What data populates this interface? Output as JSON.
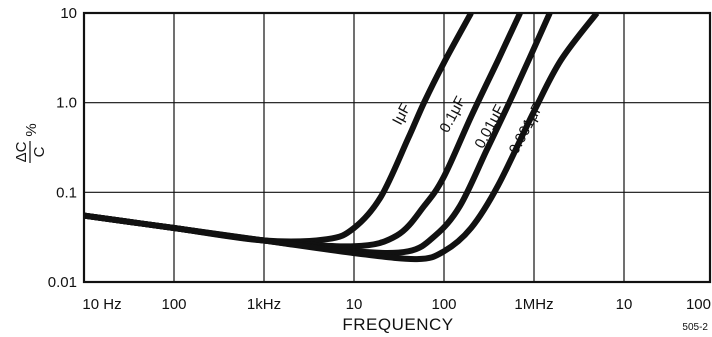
{
  "chart_data": {
    "type": "line",
    "title": "",
    "xlabel": "FREQUENCY",
    "ylabel_numerator": "ΔC",
    "ylabel_denominator": "C",
    "ylabel_unit": "%",
    "x_scale": "log",
    "y_scale": "log",
    "xlim": [
      10,
      10000000
    ],
    "ylim": [
      0.01,
      10
    ],
    "grid": true,
    "x_tick_values": [
      10,
      100,
      1000,
      10000,
      100000,
      1000000,
      10000000,
      100000000
    ],
    "x_tick_labels": [
      "10 Hz",
      "100",
      "1kHz",
      "10",
      "100",
      "1MHz",
      "10",
      "100"
    ],
    "y_tick_values": [
      0.01,
      0.1,
      1.0,
      10
    ],
    "y_tick_labels": [
      "0.01",
      "0.1",
      "1.0",
      "10"
    ],
    "figure_number": "505-2",
    "series": [
      {
        "name": "IμF",
        "x": [
          10,
          100,
          1000,
          5000,
          10000,
          20000,
          40000,
          60000,
          100000,
          200000
        ],
        "y": [
          0.055,
          0.04,
          0.029,
          0.03,
          0.04,
          0.09,
          0.4,
          1.0,
          2.8,
          10
        ]
      },
      {
        "name": "0.1μF",
        "x": [
          10,
          100,
          1000,
          10000,
          30000,
          60000,
          100000,
          200000,
          400000,
          700000
        ],
        "y": [
          0.055,
          0.04,
          0.029,
          0.025,
          0.033,
          0.07,
          0.15,
          0.7,
          3.0,
          10
        ]
      },
      {
        "name": "0.01μF",
        "x": [
          10,
          100,
          1000,
          10000,
          40000,
          80000,
          150000,
          300000,
          600000,
          1500000
        ],
        "y": [
          0.055,
          0.04,
          0.029,
          0.022,
          0.022,
          0.033,
          0.07,
          0.3,
          1.3,
          10
        ]
      },
      {
        "name": "0.001μF",
        "x": [
          10,
          100,
          1000,
          10000,
          50000,
          100000,
          200000,
          400000,
          1000000,
          2000000,
          5000000
        ],
        "y": [
          0.055,
          0.04,
          0.029,
          0.021,
          0.018,
          0.022,
          0.04,
          0.12,
          0.8,
          3.0,
          10
        ]
      }
    ]
  }
}
